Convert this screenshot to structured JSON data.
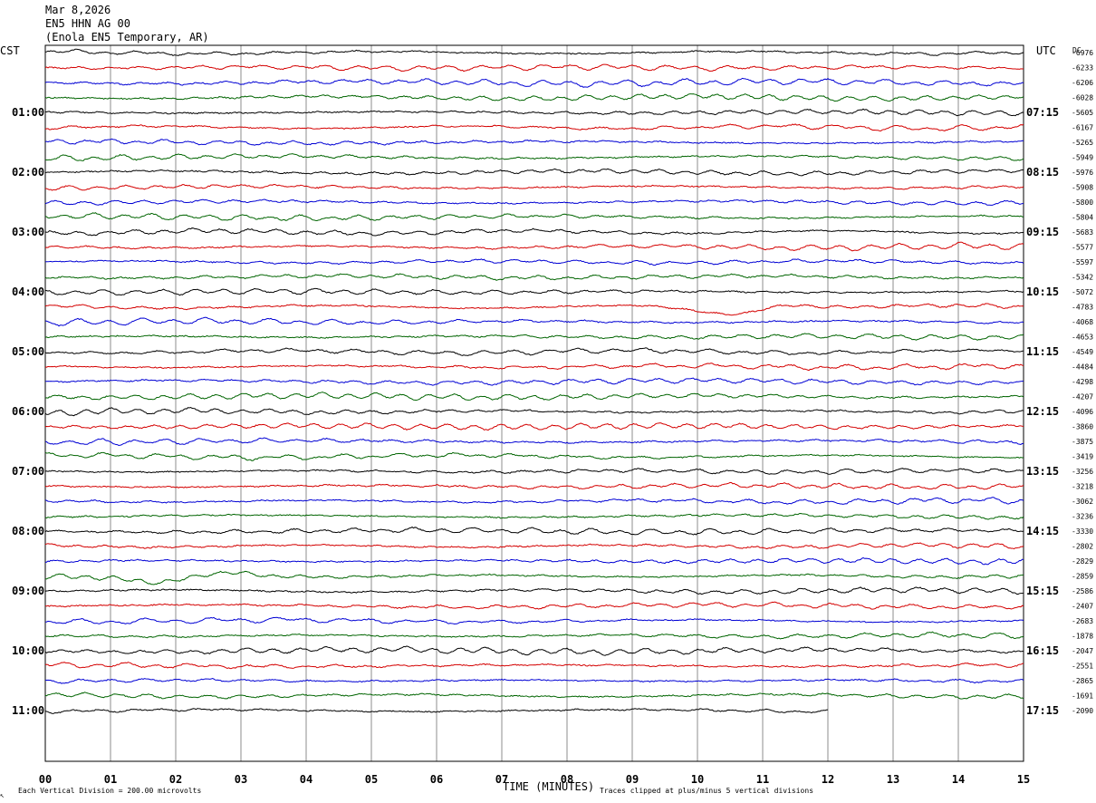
{
  "header": {
    "date": "Mar 8,2026",
    "station": "EN5 HHN AG 00",
    "location": "(Enola EN5 Temporary, AR)"
  },
  "footer": {
    "scale": "Each Vertical Division =  200.00 microvolts",
    "clip": "Traces clipped at plus/minus 5 vertical divisions",
    "corner_mark": "↖"
  },
  "chart_data": {
    "type": "line",
    "title": "",
    "xlabel": "TIME (MINUTES)",
    "ylabel": "",
    "x_ticks": [
      "00",
      "01",
      "02",
      "03",
      "04",
      "05",
      "06",
      "07",
      "08",
      "09",
      "10",
      "11",
      "12",
      "13",
      "14",
      "15"
    ],
    "xlim": [
      0,
      15
    ],
    "grid": true,
    "left_axis_label": "CST",
    "right_axis_label": "UTC",
    "dc_label": "DC",
    "trace_count": 45,
    "last_trace_end_minute": 12,
    "series_colors": [
      "#000000",
      "#d40000",
      "#0000d4",
      "#006400"
    ],
    "cst_hour_labels": [
      "01:00",
      "02:00",
      "03:00",
      "04:00",
      "05:00",
      "06:00",
      "07:00",
      "08:00",
      "09:00",
      "10:00",
      "11:00"
    ],
    "utc_hour_labels": [
      "07:15",
      "08:15",
      "09:15",
      "10:15",
      "11:15",
      "12:15",
      "13:15",
      "14:15",
      "15:15",
      "16:15",
      "17:15"
    ],
    "hour_label_trace_index": [
      4,
      8,
      12,
      16,
      20,
      24,
      28,
      32,
      36,
      40,
      44
    ],
    "dc_offsets": [
      "-6976",
      "-6233",
      "-6206",
      "-6028",
      "-5605",
      "-6167",
      "-5265",
      "-5949",
      "-5976",
      "-5908",
      "-5800",
      "-5804",
      "-5683",
      "-5577",
      "-5597",
      "-5342",
      "-5072",
      "-4783",
      "-4068",
      "-4653",
      "-4549",
      "-4484",
      "-4298",
      "-4207",
      "-4096",
      "-3860",
      "-3875",
      "-3419",
      "-3256",
      "-3218",
      "-3062",
      "-3236",
      "-3330",
      "-2802",
      "-2829",
      "-2859",
      "-2586",
      "-2407",
      "-2683",
      "-1878",
      "-2047",
      "-2551",
      "-2865",
      "-1691",
      "-2090"
    ],
    "events": [
      {
        "trace": 17,
        "minute": 10.5,
        "type": "long-period dip"
      },
      {
        "trace": 35,
        "minute": 1.8,
        "type": "long-period dip"
      }
    ]
  }
}
